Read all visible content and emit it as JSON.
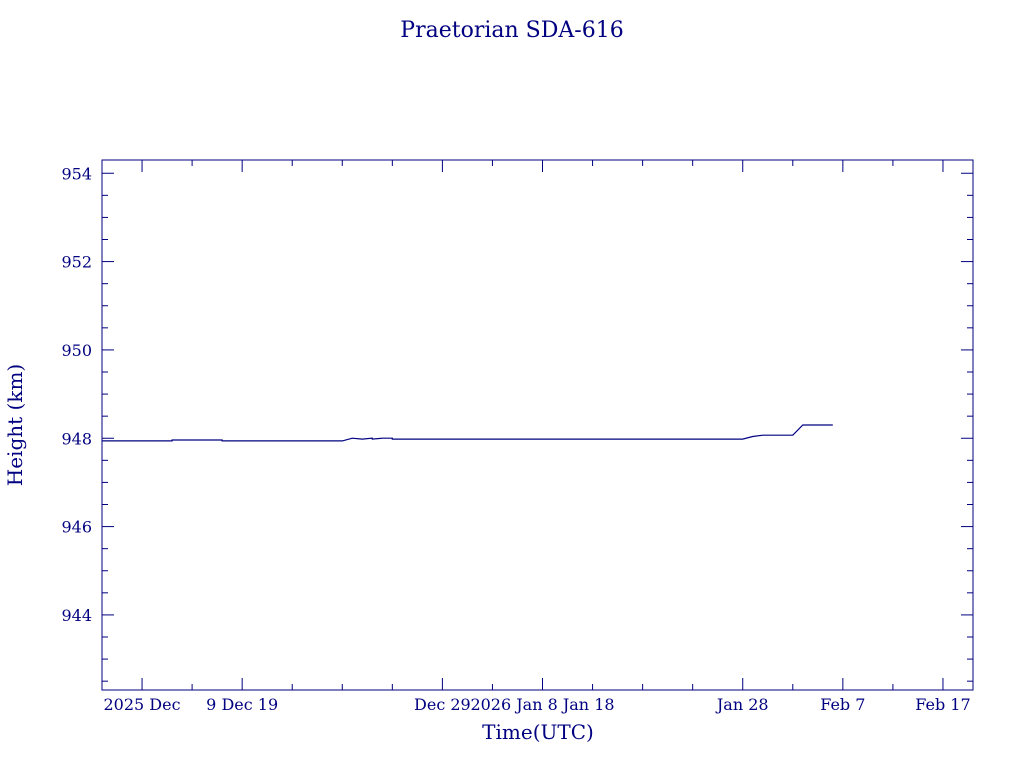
{
  "chart_data": {
    "type": "line",
    "title": "Praetorian SDA-616",
    "xlabel": "Time(UTC)",
    "ylabel": "Height (km)",
    "xlim": [
      "2025-11-25",
      "2026-02-20"
    ],
    "ylim": [
      942.3,
      954.3
    ],
    "xticks": [
      {
        "date": "2025-11-29",
        "label": "2025 Dec"
      },
      {
        "date": "2025-12-09",
        "label": "9 Dec 19"
      },
      {
        "date": "2025-12-29",
        "label": "Dec 29"
      },
      {
        "date": "2026-01-08",
        "label": "2026 Jan  8 Jan 18"
      },
      {
        "date": "2026-01-28",
        "label": "Jan 28"
      },
      {
        "date": "2026-02-07",
        "label": "Feb  7"
      },
      {
        "date": "2026-02-17",
        "label": "Feb 17"
      }
    ],
    "yticks": [
      944,
      946,
      948,
      950,
      952,
      954
    ],
    "yminor_step": 0.5,
    "xminor_step_days": 5,
    "grid": false,
    "color": "#000080",
    "series": [
      {
        "points": [
          [
            "2025-11-25",
            947.94
          ],
          [
            "2025-12-02",
            947.94
          ],
          [
            "2025-12-02",
            947.96
          ],
          [
            "2025-12-07",
            947.96
          ],
          [
            "2025-12-07",
            947.94
          ],
          [
            "2025-12-19",
            947.94
          ],
          [
            "2025-12-20",
            948.0
          ],
          [
            "2025-12-21",
            947.98
          ],
          [
            "2025-12-22",
            948.0
          ],
          [
            "2025-12-22",
            947.98
          ],
          [
            "2025-12-23",
            948.0
          ],
          [
            "2025-12-24",
            948.0
          ],
          [
            "2025-12-24",
            947.98
          ],
          [
            "2026-01-28",
            947.98
          ],
          [
            "2026-01-29",
            948.04
          ],
          [
            "2026-01-30",
            948.07
          ],
          [
            "2026-02-02",
            948.07
          ],
          [
            "2026-02-03",
            948.3
          ],
          [
            "2026-02-06",
            948.3
          ]
        ]
      }
    ]
  }
}
